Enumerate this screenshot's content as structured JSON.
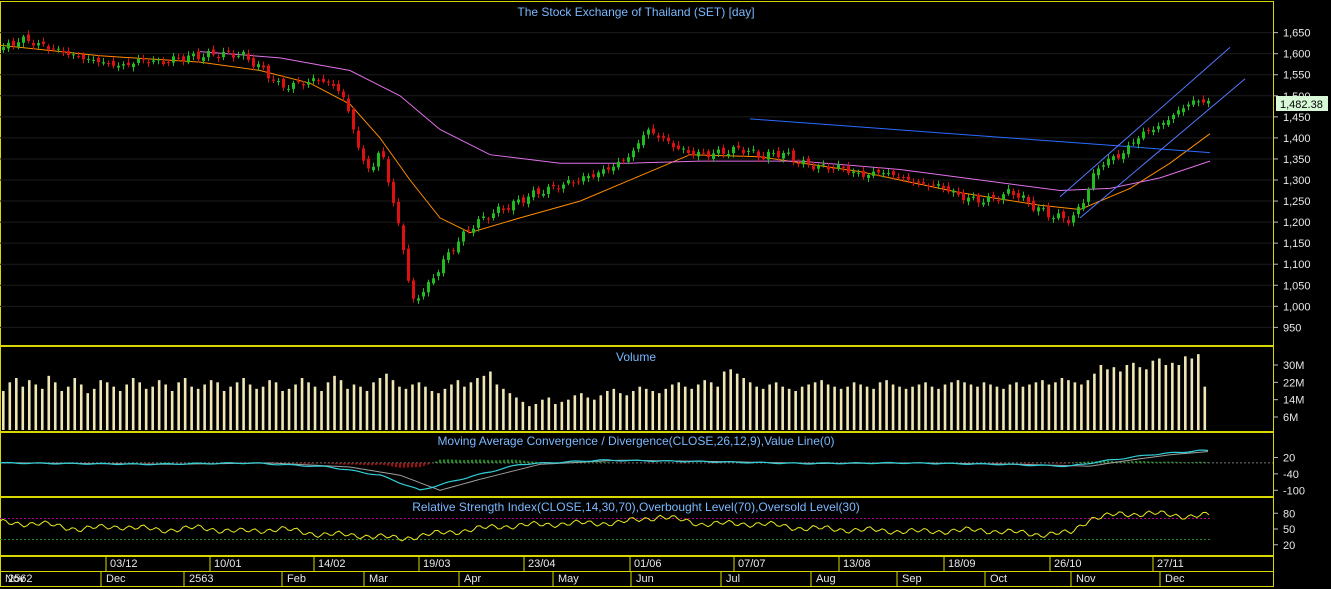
{
  "colors": {
    "background": "#000000",
    "frame": "#d8d800",
    "title": "#7ab8ff",
    "axis_text": "#e8e8e8",
    "up_candle": "#22bb22",
    "down_candle": "#dd1111",
    "ma_short": "#ff8c00",
    "ma_long": "#e070e8",
    "trend_blue": "#2a6cff",
    "channel": "#5577ff",
    "volume_bar": "#f0e6b4",
    "macd_line": "#30d0d8",
    "macd_signal": "#a0a0a0",
    "rsi_line": "#e8e820",
    "rsi_levels": "#b0008a",
    "last_price_bg": "#d8f8d8"
  },
  "price_panel": {
    "title": "The Stock Exchange of Thailand (SET) [day]",
    "y_ticks": [
      "1,650",
      "1,600",
      "1,550",
      "1,500",
      "1,450",
      "1,400",
      "1,350",
      "1,300",
      "1,250",
      "1,200",
      "1,150",
      "1,100",
      "1,050",
      "1,000",
      "950"
    ],
    "last_price": "1,482.38"
  },
  "volume_panel": {
    "title": "Volume",
    "y_ticks": [
      "30M",
      "22M",
      "14M",
      "6M"
    ]
  },
  "macd_panel": {
    "title": "Moving Average Convergence / Divergence(CLOSE,26,12,9),Value Line(0)",
    "y_ticks": [
      "20",
      "-40",
      "-100"
    ]
  },
  "rsi_panel": {
    "title": "Relative Strength Index(CLOSE,14,30,70),Overbought Level(70),Oversold Level(30)",
    "y_ticks": [
      "80",
      "50",
      "20"
    ]
  },
  "x_axis": {
    "date_labels": [
      "03/12",
      "10/01",
      "14/02",
      "19/03",
      "23/04",
      "01/06",
      "07/07",
      "13/08",
      "18/09",
      "26/10",
      "27/11"
    ],
    "month_labels": [
      "2562",
      "Nov",
      "Dec",
      "2563",
      "Feb",
      "Mar",
      "Apr",
      "May",
      "Jun",
      "Jul",
      "Aug",
      "Sep",
      "Oct",
      "Nov",
      "Dec"
    ]
  },
  "chart_data": {
    "type": "candlestick",
    "title": "The Stock Exchange of Thailand (SET) [day]",
    "ylim": [
      920,
      1680
    ],
    "anchors_close": [
      [
        0,
        1610
      ],
      [
        20,
        1635
      ],
      [
        40,
        1620
      ],
      [
        60,
        1605
      ],
      [
        80,
        1590
      ],
      [
        100,
        1580
      ],
      [
        120,
        1570
      ],
      [
        140,
        1585
      ],
      [
        160,
        1580
      ],
      [
        180,
        1590
      ],
      [
        200,
        1595
      ],
      [
        220,
        1600
      ],
      [
        240,
        1598
      ],
      [
        260,
        1565
      ],
      [
        280,
        1520
      ],
      [
        300,
        1530
      ],
      [
        320,
        1540
      ],
      [
        340,
        1510
      ],
      [
        350,
        1440
      ],
      [
        360,
        1350
      ],
      [
        370,
        1320
      ],
      [
        380,
        1380
      ],
      [
        390,
        1260
      ],
      [
        400,
        1170
      ],
      [
        410,
        1010
      ],
      [
        420,
        1030
      ],
      [
        430,
        1060
      ],
      [
        440,
        1100
      ],
      [
        455,
        1150
      ],
      [
        470,
        1190
      ],
      [
        490,
        1220
      ],
      [
        510,
        1240
      ],
      [
        530,
        1265
      ],
      [
        550,
        1280
      ],
      [
        570,
        1295
      ],
      [
        590,
        1310
      ],
      [
        610,
        1330
      ],
      [
        630,
        1360
      ],
      [
        645,
        1420
      ],
      [
        660,
        1400
      ],
      [
        680,
        1370
      ],
      [
        700,
        1360
      ],
      [
        720,
        1365
      ],
      [
        740,
        1375
      ],
      [
        760,
        1355
      ],
      [
        780,
        1365
      ],
      [
        800,
        1340
      ],
      [
        820,
        1330
      ],
      [
        840,
        1330
      ],
      [
        860,
        1310
      ],
      [
        880,
        1320
      ],
      [
        900,
        1305
      ],
      [
        920,
        1290
      ],
      [
        940,
        1285
      ],
      [
        960,
        1260
      ],
      [
        980,
        1250
      ],
      [
        1000,
        1260
      ],
      [
        1010,
        1275
      ],
      [
        1030,
        1240
      ],
      [
        1050,
        1215
      ],
      [
        1070,
        1205
      ],
      [
        1080,
        1240
      ],
      [
        1090,
        1300
      ],
      [
        1100,
        1340
      ],
      [
        1120,
        1360
      ],
      [
        1140,
        1410
      ],
      [
        1160,
        1430
      ],
      [
        1180,
        1470
      ],
      [
        1195,
        1490
      ],
      [
        1210,
        1482
      ]
    ],
    "ma_short": [
      [
        0,
        1620
      ],
      [
        100,
        1595
      ],
      [
        200,
        1580
      ],
      [
        260,
        1560
      ],
      [
        310,
        1530
      ],
      [
        350,
        1480
      ],
      [
        380,
        1400
      ],
      [
        410,
        1300
      ],
      [
        440,
        1210
      ],
      [
        470,
        1175
      ],
      [
        520,
        1210
      ],
      [
        580,
        1250
      ],
      [
        640,
        1310
      ],
      [
        690,
        1360
      ],
      [
        760,
        1355
      ],
      [
        860,
        1320
      ],
      [
        960,
        1270
      ],
      [
        1040,
        1240
      ],
      [
        1080,
        1230
      ],
      [
        1130,
        1280
      ],
      [
        1170,
        1340
      ],
      [
        1210,
        1410
      ]
    ],
    "ma_long": [
      [
        200,
        1605
      ],
      [
        280,
        1590
      ],
      [
        350,
        1560
      ],
      [
        400,
        1500
      ],
      [
        440,
        1420
      ],
      [
        490,
        1360
      ],
      [
        560,
        1340
      ],
      [
        630,
        1340
      ],
      [
        700,
        1345
      ],
      [
        800,
        1345
      ],
      [
        900,
        1325
      ],
      [
        980,
        1300
      ],
      [
        1060,
        1275
      ],
      [
        1110,
        1280
      ],
      [
        1160,
        1305
      ],
      [
        1210,
        1345
      ]
    ],
    "trend_line": [
      [
        750,
        1445
      ],
      [
        1210,
        1365
      ]
    ],
    "channel_upper": [
      [
        1060,
        1260
      ],
      [
        1230,
        1615
      ]
    ],
    "channel_lower": [
      [
        1080,
        1210
      ],
      [
        1245,
        1540
      ]
    ],
    "volume_m": [
      18,
      22,
      24,
      20,
      23,
      21,
      19,
      25,
      22,
      18,
      20,
      24,
      21,
      17,
      19,
      23,
      22,
      20,
      18,
      21,
      24,
      22,
      19,
      20,
      23,
      21,
      18,
      22,
      24,
      20,
      19,
      21,
      23,
      22,
      18,
      20,
      22,
      24,
      21,
      19,
      20,
      23,
      22,
      18,
      19,
      21,
      24,
      22,
      20,
      18,
      22,
      25,
      23,
      19,
      21,
      20,
      18,
      22,
      24,
      26,
      23,
      20,
      19,
      21,
      22,
      20,
      18,
      17,
      19,
      21,
      23,
      20,
      22,
      24,
      25,
      27,
      21,
      19,
      17,
      15,
      13,
      11,
      12,
      14,
      15,
      12,
      13,
      14,
      16,
      17,
      15,
      14,
      16,
      18,
      19,
      17,
      16,
      18,
      20,
      19,
      18,
      17,
      19,
      21,
      22,
      20,
      19,
      21,
      23,
      22,
      20,
      27,
      28,
      26,
      24,
      22,
      20,
      19,
      21,
      22,
      20,
      19,
      18,
      20,
      21,
      22,
      23,
      21,
      20,
      19,
      20,
      22,
      21,
      20,
      19,
      22,
      23,
      21,
      20,
      19,
      20,
      21,
      22,
      20,
      19,
      21,
      22,
      23,
      22,
      21,
      20,
      22,
      21,
      20,
      19,
      21,
      22,
      20,
      21,
      22,
      23,
      21,
      22,
      24,
      23,
      22,
      21,
      23,
      26,
      30,
      28,
      29,
      27,
      30,
      31,
      29,
      28,
      32,
      33,
      30,
      31,
      30,
      34,
      33,
      35,
      20
    ],
    "macd_anchors": [
      [
        0,
        0
      ],
      [
        150,
        -5
      ],
      [
        250,
        0
      ],
      [
        330,
        -15
      ],
      [
        380,
        -45
      ],
      [
        420,
        -100
      ],
      [
        460,
        -60
      ],
      [
        520,
        -5
      ],
      [
        600,
        10
      ],
      [
        700,
        5
      ],
      [
        800,
        -2
      ],
      [
        900,
        0
      ],
      [
        1000,
        -5
      ],
      [
        1070,
        -12
      ],
      [
        1100,
        5
      ],
      [
        1150,
        30
      ],
      [
        1200,
        45
      ],
      [
        1210,
        45
      ]
    ],
    "rsi_anchors": [
      [
        0,
        62
      ],
      [
        40,
        60
      ],
      [
        80,
        50
      ],
      [
        120,
        55
      ],
      [
        160,
        48
      ],
      [
        200,
        52
      ],
      [
        240,
        45
      ],
      [
        280,
        50
      ],
      [
        320,
        40
      ],
      [
        360,
        38
      ],
      [
        400,
        32
      ],
      [
        440,
        42
      ],
      [
        500,
        55
      ],
      [
        560,
        60
      ],
      [
        620,
        62
      ],
      [
        660,
        74
      ],
      [
        700,
        60
      ],
      [
        760,
        60
      ],
      [
        800,
        52
      ],
      [
        860,
        48
      ],
      [
        920,
        45
      ],
      [
        980,
        48
      ],
      [
        1040,
        40
      ],
      [
        1070,
        42
      ],
      [
        1090,
        70
      ],
      [
        1120,
        78
      ],
      [
        1150,
        80
      ],
      [
        1180,
        75
      ],
      [
        1210,
        76
      ]
    ]
  }
}
